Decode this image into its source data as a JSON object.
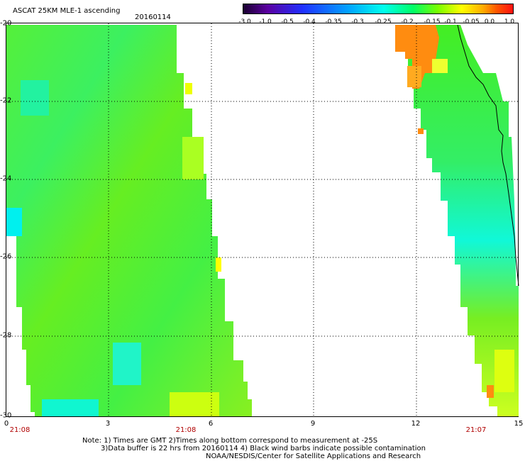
{
  "header": {
    "title": "ASCAT 25KM MLE-1 ascending",
    "date": "20160114"
  },
  "colorbar": {
    "labels": [
      "-3.0",
      "-1.0",
      "-0.5",
      "-0.4",
      "-0.35",
      "-0.3",
      "-0.25",
      "-0.2",
      "-0.15",
      "-0.1",
      "-0.05",
      "0.0",
      "1.0"
    ]
  },
  "axes": {
    "y_ticks": [
      "-20",
      "-22",
      "-24",
      "-26",
      "-28",
      "-30"
    ],
    "x_ticks": [
      "0",
      "3",
      "6",
      "9",
      "12",
      "15"
    ]
  },
  "time_labels": [
    "21:08",
    "21:08",
    "21:07"
  ],
  "notes": [
    "Note: 1) Times are GMT 2)Times along bottom correspond to measurement at -25S",
    "3)Data buffer is 22 hrs from 20160114 4) Black wind barbs indicate possible contamination",
    "NOAA/NESDIS/Center for Satellite Applications and Research"
  ],
  "colors": {
    "swath_main": "#44ee22",
    "swath_cyan": "#00ffcc",
    "swath_yellow": "#ccff00",
    "swath_orange": "#ff8800",
    "time_label": "#b00000"
  }
}
